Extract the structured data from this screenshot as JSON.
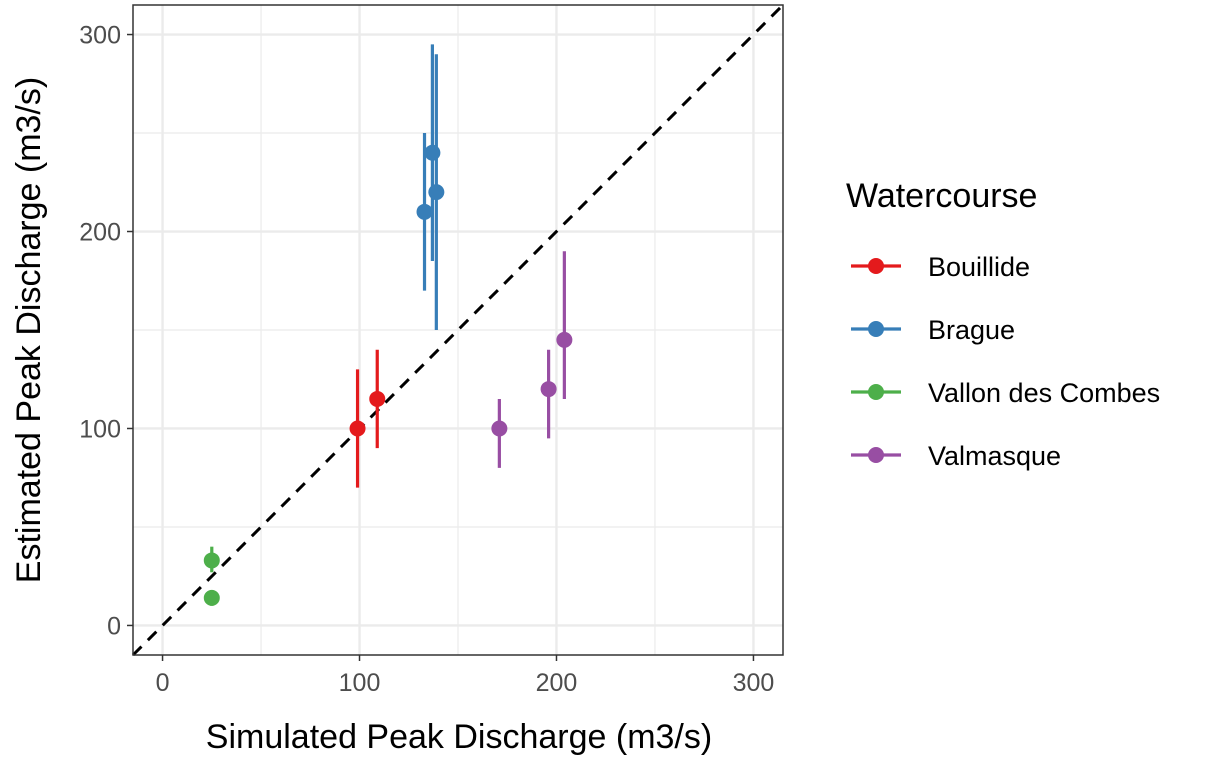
{
  "chart_data": {
    "type": "scatter",
    "title": "",
    "xlabel": "Simulated Peak Discharge (m3/s)",
    "ylabel": "Estimated Peak Discharge (m3/s)",
    "xlim": [
      -15,
      315
    ],
    "ylim": [
      -15,
      315
    ],
    "x_ticks": [
      0,
      100,
      200,
      300
    ],
    "y_ticks": [
      0,
      100,
      200,
      300
    ],
    "x_tick_labels": [
      "0",
      "100",
      "200",
      "300"
    ],
    "y_tick_labels": [
      "0",
      "100",
      "200",
      "300"
    ],
    "grid": true,
    "reference_line": {
      "style": "dashed",
      "slope": 1,
      "intercept": 0
    },
    "legend": {
      "title": "Watercourse",
      "position": "right"
    },
    "series": [
      {
        "name": "Bouillide",
        "color": "#e41a1c",
        "points": [
          {
            "x": 99,
            "y": 100,
            "ymin": 70,
            "ymax": 130
          },
          {
            "x": 109,
            "y": 115,
            "ymin": 90,
            "ymax": 140
          }
        ]
      },
      {
        "name": "Brague",
        "color": "#377eb8",
        "points": [
          {
            "x": 133,
            "y": 210,
            "ymin": 170,
            "ymax": 250
          },
          {
            "x": 137,
            "y": 240,
            "ymin": 185,
            "ymax": 295
          },
          {
            "x": 139,
            "y": 220,
            "ymin": 150,
            "ymax": 290
          }
        ]
      },
      {
        "name": "Vallon des Combes",
        "color": "#4daf4a",
        "points": [
          {
            "x": 25,
            "y": 33,
            "ymin": 27,
            "ymax": 40
          },
          {
            "x": 25,
            "y": 14,
            "ymin": 10,
            "ymax": 18
          }
        ]
      },
      {
        "name": "Valmasque",
        "color": "#984ea3",
        "points": [
          {
            "x": 171,
            "y": 100,
            "ymin": 80,
            "ymax": 115
          },
          {
            "x": 196,
            "y": 120,
            "ymin": 95,
            "ymax": 140
          },
          {
            "x": 204,
            "y": 145,
            "ymin": 115,
            "ymax": 190
          }
        ]
      }
    ]
  }
}
